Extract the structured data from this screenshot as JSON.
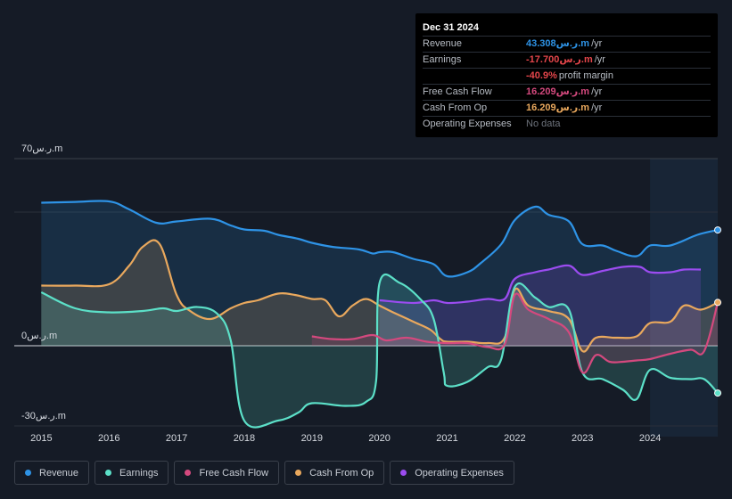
{
  "tooltip": {
    "date": "Dec 31 2024",
    "rows": [
      {
        "label": "Revenue",
        "value": "43.308ر.س.m",
        "unit": "/yr",
        "color": "#2e93e6"
      },
      {
        "label": "Earnings",
        "value": "-17.700ر.س.m",
        "unit": "/yr",
        "color": "#e5464b"
      },
      {
        "label": "",
        "value": "-40.9%",
        "unit": "profit margin",
        "color": "#e5464b"
      },
      {
        "label": "Free Cash Flow",
        "value": "16.209ر.س.m",
        "unit": "/yr",
        "color": "#d4497e"
      },
      {
        "label": "Cash From Op",
        "value": "16.209ر.س.m",
        "unit": "/yr",
        "color": "#e9a85d"
      },
      {
        "label": "Operating Expenses",
        "value": "No data",
        "unit": "",
        "color": "#6d737c"
      }
    ]
  },
  "legend": [
    {
      "label": "Revenue",
      "color": "#2e93e6"
    },
    {
      "label": "Earnings",
      "color": "#5ce0c8"
    },
    {
      "label": "Free Cash Flow",
      "color": "#d4497e"
    },
    {
      "label": "Cash From Op",
      "color": "#e9a85d"
    },
    {
      "label": "Operating Expenses",
      "color": "#9b4cf0"
    }
  ],
  "chart_data": {
    "type": "area",
    "title": "",
    "xlabel": "",
    "ylabel": "",
    "ylim": [
      -30,
      70
    ],
    "y_tick_labels": [
      "70ر.س.m",
      "0ر.س.m",
      "-30ر.س.m"
    ],
    "y_ticks": [
      70,
      0,
      -30
    ],
    "x_tick_labels": [
      "2015",
      "2016",
      "2017",
      "2018",
      "2019",
      "2020",
      "2021",
      "2022",
      "2023",
      "2024"
    ],
    "x_ticks": [
      2015,
      2016,
      2017,
      2018,
      2019,
      2020,
      2021,
      2022,
      2023,
      2024
    ],
    "xlim": [
      2014.6,
      2025.0
    ],
    "forecast_start": 2024.0,
    "series": [
      {
        "name": "Revenue",
        "color": "#2e93e6",
        "points": [
          [
            2015.0,
            53.5
          ],
          [
            2015.5,
            53.8
          ],
          [
            2016.0,
            54.0
          ],
          [
            2016.3,
            51
          ],
          [
            2016.7,
            46
          ],
          [
            2017.0,
            46.5
          ],
          [
            2017.5,
            47.5
          ],
          [
            2017.8,
            45
          ],
          [
            2018.0,
            43.5
          ],
          [
            2018.3,
            43.0
          ],
          [
            2018.5,
            41.5
          ],
          [
            2018.8,
            40.0
          ],
          [
            2019.0,
            38.5
          ],
          [
            2019.3,
            37.0
          ],
          [
            2019.7,
            36.0
          ],
          [
            2019.9,
            34.5
          ],
          [
            2020.0,
            35.0
          ],
          [
            2020.2,
            35.0
          ],
          [
            2020.5,
            32.5
          ],
          [
            2020.8,
            30.5
          ],
          [
            2021.0,
            26.0
          ],
          [
            2021.3,
            27.5
          ],
          [
            2021.5,
            31.0
          ],
          [
            2021.8,
            38.0
          ],
          [
            2022.0,
            47.0
          ],
          [
            2022.3,
            52.0
          ],
          [
            2022.5,
            49.0
          ],
          [
            2022.8,
            46.5
          ],
          [
            2023.0,
            38.0
          ],
          [
            2023.3,
            37.5
          ],
          [
            2023.5,
            35.5
          ],
          [
            2023.8,
            33.5
          ],
          [
            2024.0,
            37.5
          ],
          [
            2024.3,
            37.5
          ],
          [
            2024.7,
            41.5
          ],
          [
            2025.0,
            43.3
          ]
        ]
      },
      {
        "name": "Earnings",
        "color": "#5ce0c8",
        "points": [
          [
            2015.0,
            20.0
          ],
          [
            2015.5,
            14.0
          ],
          [
            2016.0,
            12.5
          ],
          [
            2016.5,
            13.0
          ],
          [
            2016.8,
            14.0
          ],
          [
            2017.0,
            13.0
          ],
          [
            2017.3,
            14.5
          ],
          [
            2017.6,
            12.0
          ],
          [
            2017.8,
            2.0
          ],
          [
            2018.0,
            -28.0
          ],
          [
            2018.5,
            -28.0
          ],
          [
            2018.8,
            -25.0
          ],
          [
            2019.0,
            -21.5
          ],
          [
            2019.5,
            -22.5
          ],
          [
            2019.8,
            -21.0
          ],
          [
            2019.95,
            -13.0
          ],
          [
            2020.0,
            23.5
          ],
          [
            2020.3,
            23.5
          ],
          [
            2020.6,
            17.5
          ],
          [
            2020.8,
            10.0
          ],
          [
            2020.95,
            -10.0
          ],
          [
            2021.0,
            -15.0
          ],
          [
            2021.3,
            -13.5
          ],
          [
            2021.6,
            -8.0
          ],
          [
            2021.8,
            -5.0
          ],
          [
            2022.0,
            22.0
          ],
          [
            2022.3,
            18.0
          ],
          [
            2022.5,
            14.5
          ],
          [
            2022.8,
            13.5
          ],
          [
            2023.0,
            -10.0
          ],
          [
            2023.3,
            -12.5
          ],
          [
            2023.6,
            -16.5
          ],
          [
            2023.8,
            -20.0
          ],
          [
            2024.0,
            -9.0
          ],
          [
            2024.3,
            -12.0
          ],
          [
            2024.6,
            -12.5
          ],
          [
            2024.8,
            -12.5
          ],
          [
            2025.0,
            -17.7
          ]
        ]
      },
      {
        "name": "Free Cash Flow",
        "color": "#d4497e",
        "points": [
          [
            2019.0,
            3.5
          ],
          [
            2019.3,
            2.5
          ],
          [
            2019.6,
            2.5
          ],
          [
            2019.9,
            4.0
          ],
          [
            2020.1,
            2.0
          ],
          [
            2020.4,
            3.0
          ],
          [
            2020.7,
            1.5
          ],
          [
            2021.0,
            1.0
          ],
          [
            2021.3,
            1.0
          ],
          [
            2021.6,
            -0.5
          ],
          [
            2021.85,
            0.5
          ],
          [
            2022.0,
            19.0
          ],
          [
            2022.2,
            13.5
          ],
          [
            2022.5,
            10.0
          ],
          [
            2022.8,
            5.0
          ],
          [
            2023.0,
            -10.0
          ],
          [
            2023.2,
            -3.5
          ],
          [
            2023.4,
            -6.0
          ],
          [
            2023.6,
            -6.0
          ],
          [
            2023.8,
            -5.5
          ],
          [
            2024.0,
            -5.0
          ],
          [
            2024.3,
            -3.0
          ],
          [
            2024.6,
            -1.5
          ],
          [
            2024.8,
            -2.0
          ],
          [
            2025.0,
            16.2
          ]
        ]
      },
      {
        "name": "Cash From Op",
        "color": "#e9a85d",
        "points": [
          [
            2015.0,
            22.5
          ],
          [
            2015.5,
            22.5
          ],
          [
            2016.0,
            23.0
          ],
          [
            2016.3,
            30.0
          ],
          [
            2016.5,
            37.0
          ],
          [
            2016.75,
            38.0
          ],
          [
            2017.0,
            19.0
          ],
          [
            2017.2,
            13.0
          ],
          [
            2017.5,
            10.0
          ],
          [
            2017.8,
            14.0
          ],
          [
            2018.0,
            16.0
          ],
          [
            2018.2,
            17.0
          ],
          [
            2018.5,
            19.5
          ],
          [
            2018.75,
            19.0
          ],
          [
            2019.0,
            17.5
          ],
          [
            2019.2,
            17.0
          ],
          [
            2019.4,
            11.0
          ],
          [
            2019.6,
            15.0
          ],
          [
            2019.8,
            17.5
          ],
          [
            2020.0,
            15.0
          ],
          [
            2020.2,
            12.5
          ],
          [
            2020.5,
            9.0
          ],
          [
            2020.75,
            6.0
          ],
          [
            2020.9,
            2.5
          ],
          [
            2021.0,
            1.5
          ],
          [
            2021.3,
            1.5
          ],
          [
            2021.6,
            1.0
          ],
          [
            2021.85,
            3.0
          ],
          [
            2022.0,
            21.0
          ],
          [
            2022.2,
            15.0
          ],
          [
            2022.5,
            13.0
          ],
          [
            2022.8,
            10.0
          ],
          [
            2023.0,
            -2.0
          ],
          [
            2023.2,
            3.0
          ],
          [
            2023.5,
            3.0
          ],
          [
            2023.8,
            3.5
          ],
          [
            2024.0,
            8.5
          ],
          [
            2024.3,
            9.0
          ],
          [
            2024.5,
            15.0
          ],
          [
            2024.75,
            13.5
          ],
          [
            2025.0,
            16.2
          ]
        ]
      },
      {
        "name": "Operating Expenses",
        "color": "#9b4cf0",
        "points": [
          [
            2020.0,
            17.0
          ],
          [
            2020.5,
            16.0
          ],
          [
            2020.8,
            17.0
          ],
          [
            2021.0,
            16.0
          ],
          [
            2021.3,
            16.5
          ],
          [
            2021.6,
            17.5
          ],
          [
            2021.85,
            17.5
          ],
          [
            2022.0,
            25.0
          ],
          [
            2022.3,
            27.5
          ],
          [
            2022.5,
            28.5
          ],
          [
            2022.8,
            30.0
          ],
          [
            2023.0,
            26.5
          ],
          [
            2023.3,
            28.0
          ],
          [
            2023.6,
            29.5
          ],
          [
            2023.85,
            29.5
          ],
          [
            2024.0,
            27.5
          ],
          [
            2024.3,
            27.5
          ],
          [
            2024.5,
            28.5
          ],
          [
            2024.75,
            28.5
          ]
        ]
      }
    ],
    "end_markers": [
      "Revenue",
      "Earnings",
      "Cash From Op"
    ]
  }
}
